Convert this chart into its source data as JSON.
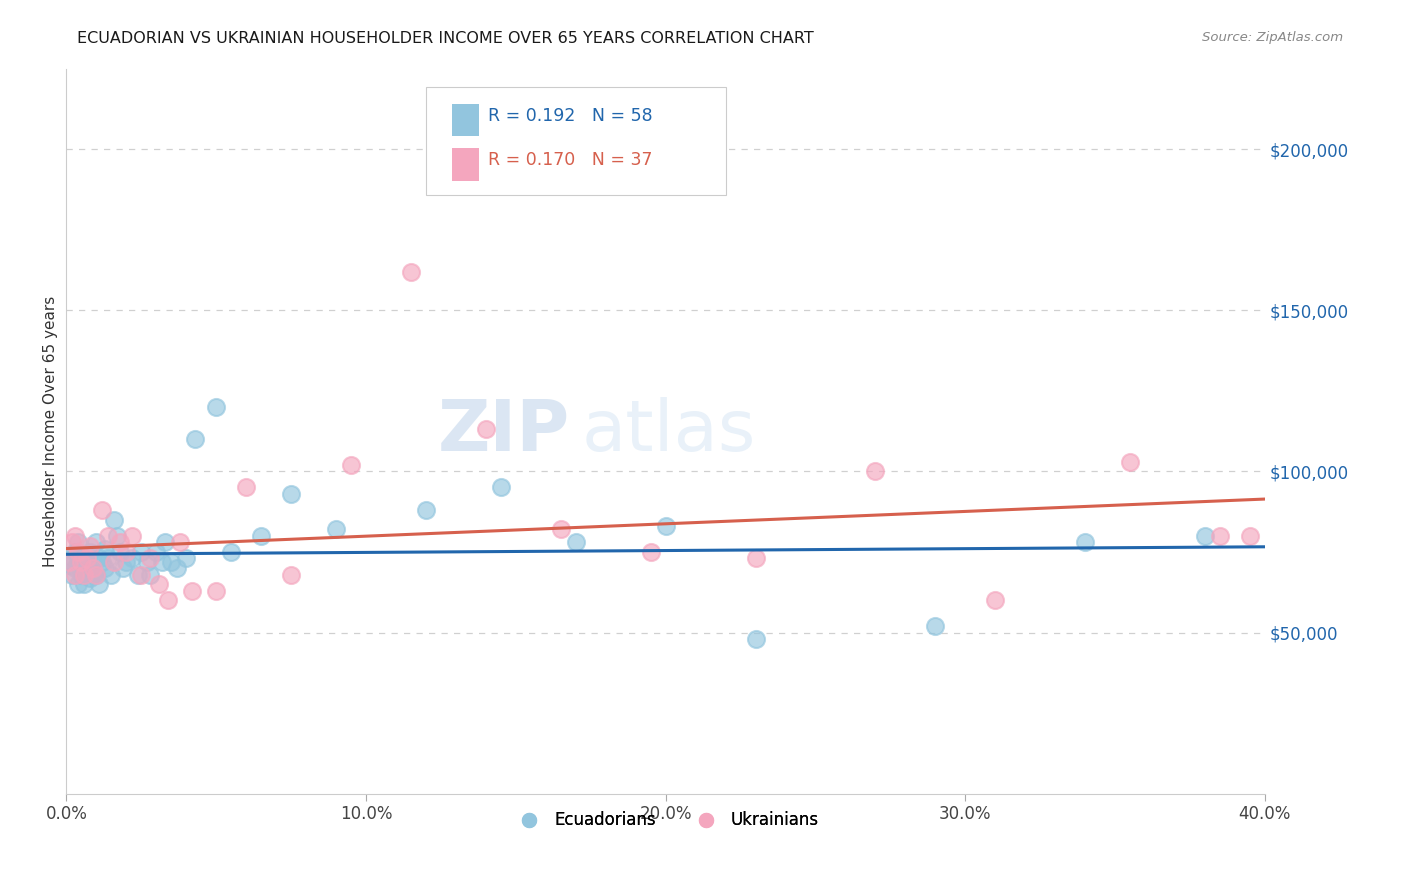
{
  "title": "ECUADORIAN VS UKRAINIAN HOUSEHOLDER INCOME OVER 65 YEARS CORRELATION CHART",
  "source": "Source: ZipAtlas.com",
  "ylabel": "Householder Income Over 65 years",
  "xlim": [
    0.0,
    0.4
  ],
  "ylim": [
    0,
    225000
  ],
  "xtick_labels": [
    "0.0%",
    "",
    "10.0%",
    "",
    "20.0%",
    "",
    "30.0%",
    "",
    "40.0%"
  ],
  "xtick_values": [
    0.0,
    0.05,
    0.1,
    0.15,
    0.2,
    0.25,
    0.3,
    0.35,
    0.4
  ],
  "xtick_display": [
    "0.0%",
    "10.0%",
    "20.0%",
    "30.0%",
    "40.0%"
  ],
  "xtick_display_vals": [
    0.0,
    0.1,
    0.2,
    0.3,
    0.4
  ],
  "ytick_values": [
    50000,
    100000,
    150000,
    200000
  ],
  "ytick_labels": [
    "$50,000",
    "$100,000",
    "$150,000",
    "$200,000"
  ],
  "blue_color": "#92c5de",
  "pink_color": "#f4a6be",
  "blue_line_color": "#2166ac",
  "pink_line_color": "#d6604d",
  "R_blue": 0.192,
  "N_blue": 58,
  "R_pink": 0.17,
  "N_pink": 37,
  "blue_x": [
    0.001,
    0.002,
    0.002,
    0.003,
    0.003,
    0.004,
    0.004,
    0.004,
    0.005,
    0.005,
    0.005,
    0.006,
    0.006,
    0.007,
    0.007,
    0.008,
    0.008,
    0.009,
    0.009,
    0.01,
    0.01,
    0.011,
    0.011,
    0.012,
    0.013,
    0.013,
    0.014,
    0.015,
    0.016,
    0.017,
    0.018,
    0.019,
    0.02,
    0.022,
    0.024,
    0.025,
    0.027,
    0.028,
    0.03,
    0.032,
    0.033,
    0.035,
    0.037,
    0.04,
    0.043,
    0.05,
    0.055,
    0.065,
    0.075,
    0.09,
    0.12,
    0.145,
    0.17,
    0.2,
    0.23,
    0.29,
    0.34,
    0.38
  ],
  "blue_y": [
    71000,
    73000,
    68000,
    75000,
    70000,
    72000,
    65000,
    78000,
    70000,
    68000,
    74000,
    70000,
    65000,
    72000,
    69000,
    75000,
    67000,
    72000,
    68000,
    78000,
    68000,
    73000,
    65000,
    72000,
    70000,
    76000,
    73000,
    68000,
    85000,
    80000,
    75000,
    70000,
    72000,
    73000,
    68000,
    75000,
    72000,
    68000,
    75000,
    72000,
    78000,
    72000,
    70000,
    73000,
    110000,
    120000,
    75000,
    80000,
    93000,
    82000,
    88000,
    95000,
    78000,
    83000,
    48000,
    52000,
    78000,
    80000
  ],
  "pink_x": [
    0.001,
    0.002,
    0.003,
    0.003,
    0.004,
    0.005,
    0.006,
    0.007,
    0.008,
    0.009,
    0.01,
    0.012,
    0.014,
    0.016,
    0.018,
    0.02,
    0.022,
    0.025,
    0.028,
    0.031,
    0.034,
    0.038,
    0.042,
    0.05,
    0.06,
    0.075,
    0.095,
    0.115,
    0.14,
    0.165,
    0.195,
    0.23,
    0.27,
    0.31,
    0.355,
    0.385,
    0.395
  ],
  "pink_y": [
    72000,
    78000,
    80000,
    68000,
    75000,
    72000,
    68000,
    73000,
    77000,
    70000,
    68000,
    88000,
    80000,
    72000,
    78000,
    75000,
    80000,
    68000,
    73000,
    65000,
    60000,
    78000,
    63000,
    63000,
    95000,
    68000,
    102000,
    162000,
    113000,
    82000,
    75000,
    73000,
    100000,
    60000,
    103000,
    80000,
    80000
  ],
  "watermark_zip": "ZIP",
  "watermark_atlas": "atlas",
  "background_color": "#ffffff",
  "grid_color": "#d0d0d0"
}
